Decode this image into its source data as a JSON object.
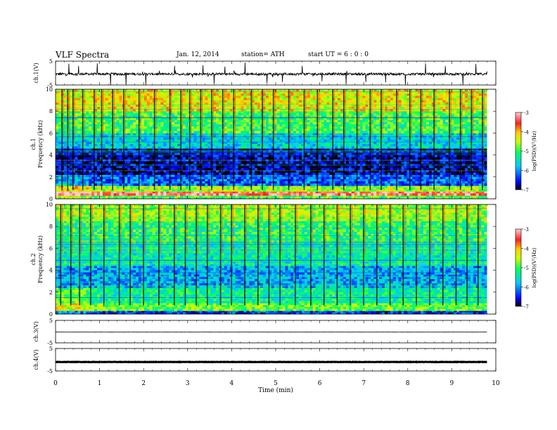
{
  "header": {
    "title": "VLF  Spectra",
    "date": "Jan.  12,  2014",
    "station": "station= ATH",
    "start": "start  UT  =    6  : 0  : 0"
  },
  "chart_data": [
    {
      "type": "line",
      "panel": "ch1-waveform",
      "ylabel": "ch.1(V)",
      "ylim": [
        -5,
        5
      ],
      "yticks": [
        "5",
        "-5"
      ],
      "xlim": [
        0,
        10
      ],
      "x_end": 9.8,
      "baseline": -0.4,
      "amplitude": 1.0,
      "spike_times": [
        0.3,
        0.52,
        0.95,
        1.25,
        1.6,
        2.05,
        2.7,
        3.35,
        3.6,
        3.85,
        4.3,
        4.8,
        5.15,
        5.6,
        6.05,
        6.6,
        7.05,
        7.5,
        7.95,
        8.4,
        8.85,
        9.25,
        9.55
      ]
    },
    {
      "type": "heatmap",
      "panel": "ch1-spectrogram",
      "ylabel": "ch.1 Frequency (kHz)",
      "ylim": [
        0,
        10
      ],
      "yticks": [
        "0",
        "2",
        "4",
        "6",
        "8",
        "10"
      ],
      "xlim": [
        0,
        10
      ],
      "x_end": 9.8,
      "colorbar": {
        "label": "log(PSD)(V²/Hz)",
        "range": [
          -7,
          -3
        ],
        "ticks": [
          "-3",
          "-4",
          "-5",
          "-6",
          "-7"
        ]
      },
      "bands": [
        {
          "f": [
            0.0,
            0.3
          ],
          "v": -5.0
        },
        {
          "f": [
            0.3,
            0.7
          ],
          "v": -3.3
        },
        {
          "f": [
            0.7,
            1.2
          ],
          "v": -4.6
        },
        {
          "f": [
            1.2,
            2.2
          ],
          "v": -6.2
        },
        {
          "f": [
            2.2,
            4.6
          ],
          "v": -6.7
        },
        {
          "f": [
            4.6,
            6.0
          ],
          "v": -5.6
        },
        {
          "f": [
            6.0,
            8.0
          ],
          "v": -5.0
        },
        {
          "f": [
            8.0,
            10.0
          ],
          "v": -4.3
        }
      ],
      "bursts": [
        0.15,
        0.28,
        0.4,
        0.62,
        0.88,
        1.05,
        1.3,
        1.55,
        1.9,
        2.25,
        2.6,
        2.85,
        3.05,
        3.3,
        3.55,
        3.8,
        4.05,
        4.45,
        4.7,
        4.95,
        5.3,
        5.65,
        5.95,
        6.3,
        6.55,
        6.85,
        7.15,
        7.4,
        7.75,
        8.05,
        8.3,
        8.6,
        8.95,
        9.2,
        9.45,
        9.7
      ]
    },
    {
      "type": "heatmap",
      "panel": "ch2-spectrogram",
      "ylabel": "ch.2 Frequency (kHz)",
      "ylim": [
        0,
        10
      ],
      "yticks": [
        "0",
        "2",
        "4",
        "6",
        "8",
        "10"
      ],
      "xlim": [
        0,
        10
      ],
      "x_end": 9.8,
      "colorbar": {
        "label": "log(PSD)(V²/Hz)",
        "range": [
          -7,
          -3
        ],
        "ticks": [
          "-3",
          "-4",
          "-5",
          "-6",
          "-7"
        ]
      },
      "bands": [
        {
          "f": [
            0.0,
            0.3
          ],
          "v": -6.4
        },
        {
          "f": [
            0.3,
            1.0
          ],
          "v": -4.8
        },
        {
          "f": [
            1.0,
            2.4
          ],
          "v": -5.3
        },
        {
          "f": [
            2.4,
            4.4
          ],
          "v": -5.9
        },
        {
          "f": [
            4.4,
            6.5
          ],
          "v": -5.4
        },
        {
          "f": [
            6.5,
            8.5
          ],
          "v": -5.1
        },
        {
          "f": [
            8.5,
            10.0
          ],
          "v": -4.6
        }
      ],
      "bursts": [
        0.12,
        0.35,
        0.55,
        0.8,
        1.1,
        1.45,
        1.7,
        2.0,
        2.35,
        2.7,
        2.95,
        3.2,
        3.45,
        3.75,
        4.0,
        4.3,
        4.6,
        4.85,
        5.1,
        5.45,
        5.8,
        6.1,
        6.4,
        6.7,
        7.0,
        7.3,
        7.6,
        7.9,
        8.2,
        8.5,
        8.8,
        9.1,
        9.35,
        9.6
      ]
    },
    {
      "type": "line",
      "panel": "ch3-waveform",
      "ylabel": "ch.3(V)",
      "ylim": [
        -5,
        5
      ],
      "yticks": [
        "5",
        "-5"
      ],
      "xlim": [
        0,
        10
      ],
      "x_end": 9.8,
      "baseline": -0.2,
      "amplitude": 0.08
    },
    {
      "type": "line",
      "panel": "ch4-waveform",
      "ylabel": "ch.4(V)",
      "ylim": [
        -5,
        5
      ],
      "yticks": [
        "5",
        "-5"
      ],
      "xlim": [
        0,
        10
      ],
      "x_end": 9.8,
      "baseline": -1.0,
      "amplitude": 0.15
    }
  ],
  "xaxis": {
    "label": "Time  (min)",
    "ticks": [
      "0",
      "1",
      "2",
      "3",
      "4",
      "5",
      "6",
      "7",
      "8",
      "9",
      "10"
    ]
  }
}
